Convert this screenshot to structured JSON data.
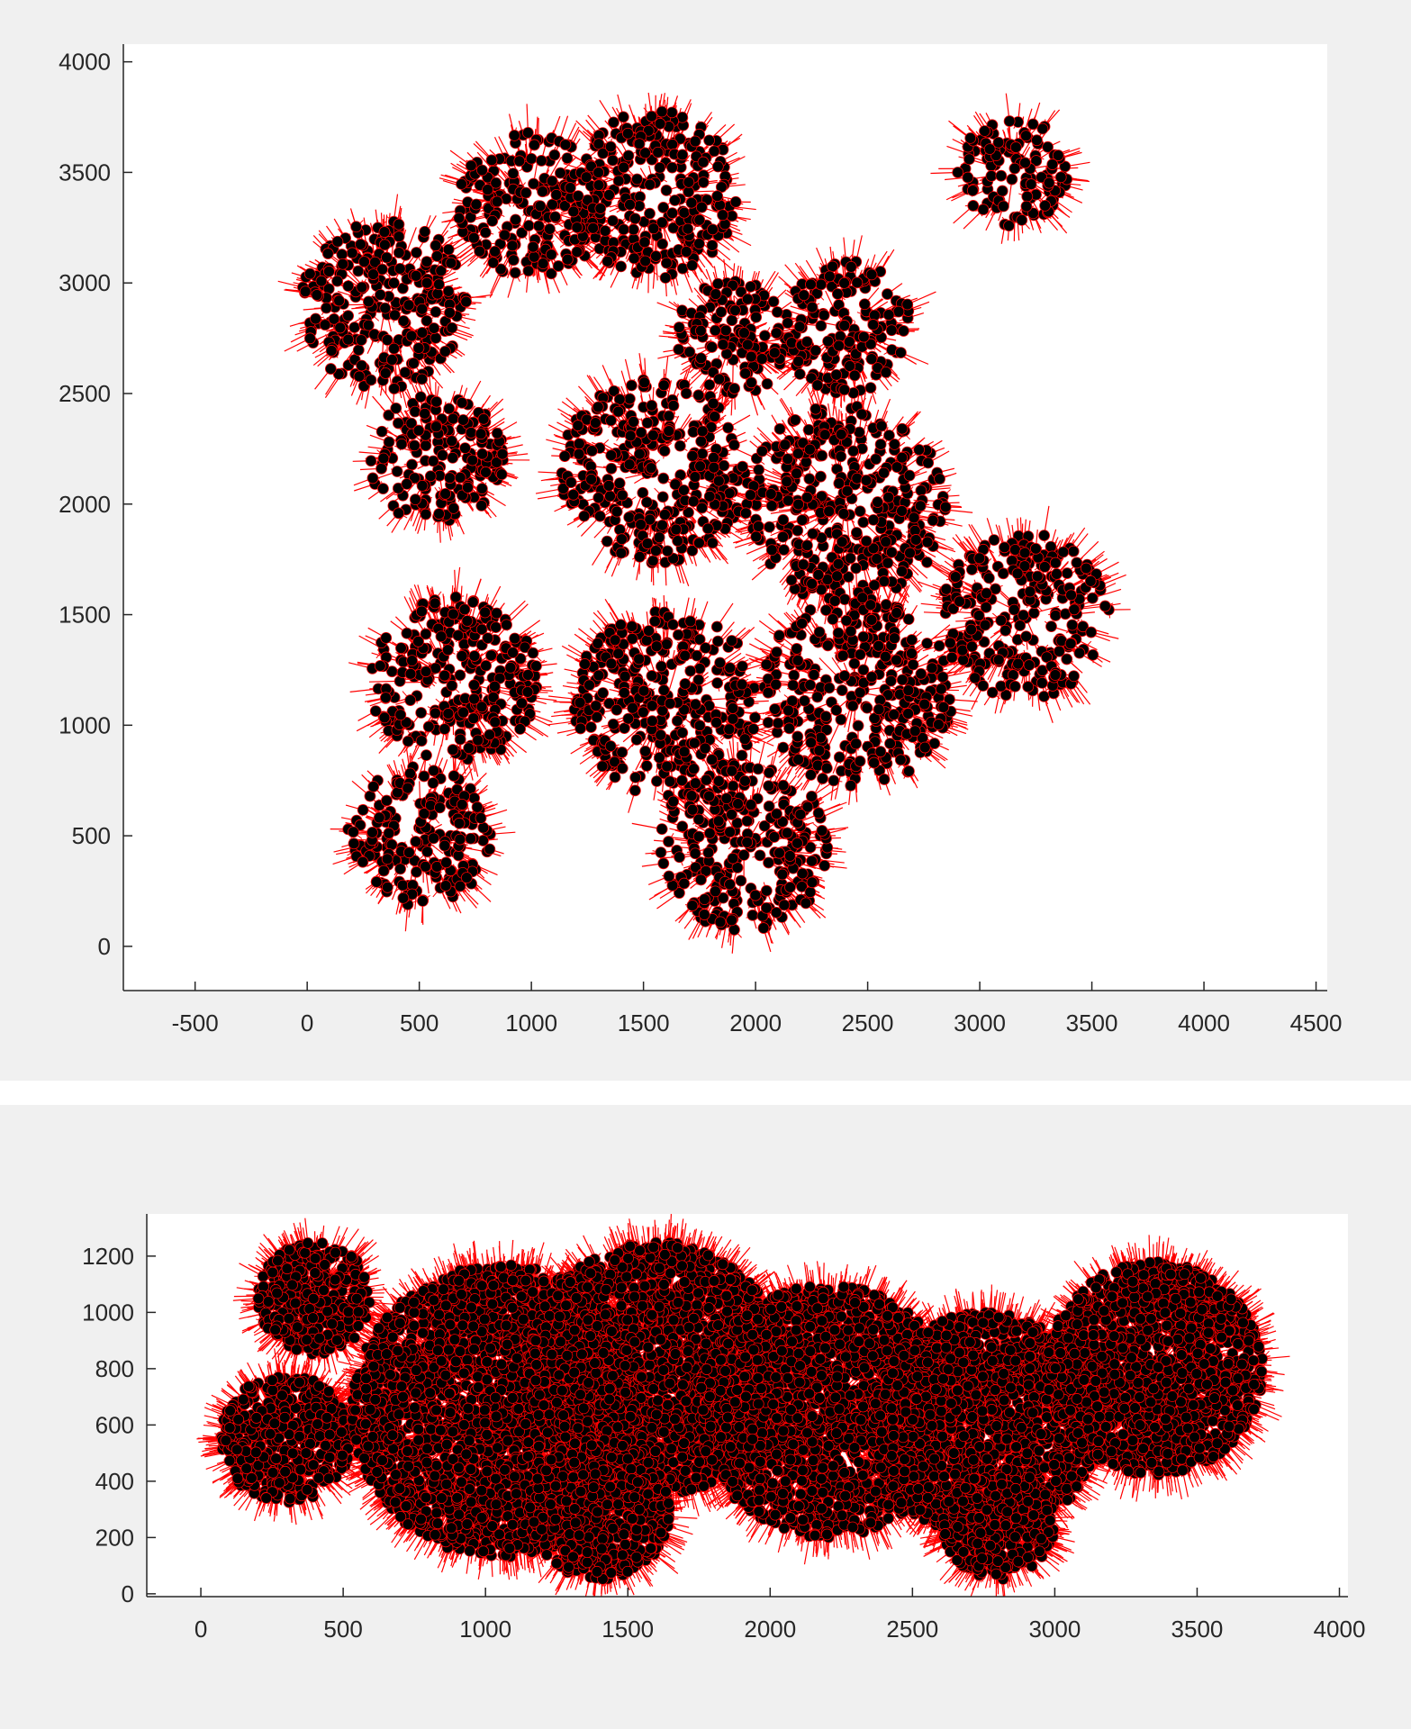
{
  "chart_data": [
    {
      "type": "scatter",
      "title": "",
      "xlabel": "",
      "ylabel": "",
      "xlim": [
        -820,
        4550
      ],
      "ylim": [
        -200,
        4080
      ],
      "xticks": [
        -500,
        0,
        500,
        1000,
        1500,
        2000,
        2500,
        3000,
        3500,
        4000,
        4500
      ],
      "yticks": [
        0,
        500,
        1000,
        1500,
        2000,
        2500,
        3000,
        3500,
        4000
      ],
      "grid": false,
      "colors": {
        "marker": "#000000",
        "glyph": "#ff0000",
        "plot_bg": "#ffffff",
        "figure_bg": "#f0f0f0"
      },
      "clusters": [
        {
          "x": 350,
          "y": 2900,
          "r": 380
        },
        {
          "x": 1000,
          "y": 3350,
          "r": 330
        },
        {
          "x": 1550,
          "y": 3400,
          "r": 380
        },
        {
          "x": 580,
          "y": 2200,
          "r": 300
        },
        {
          "x": 1550,
          "y": 2150,
          "r": 420
        },
        {
          "x": 650,
          "y": 1200,
          "r": 380
        },
        {
          "x": 1600,
          "y": 1100,
          "r": 420
        },
        {
          "x": 2400,
          "y": 2000,
          "r": 450
        },
        {
          "x": 2450,
          "y": 1150,
          "r": 430
        },
        {
          "x": 3200,
          "y": 1500,
          "r": 380
        },
        {
          "x": 500,
          "y": 500,
          "r": 320
        },
        {
          "x": 1950,
          "y": 450,
          "r": 380
        },
        {
          "x": 2400,
          "y": 2800,
          "r": 300
        },
        {
          "x": 3150,
          "y": 3500,
          "r": 250
        },
        {
          "x": 1900,
          "y": 2750,
          "r": 260
        }
      ]
    },
    {
      "type": "scatter",
      "title": "",
      "xlabel": "",
      "ylabel": "",
      "xlim": [
        -190,
        4030
      ],
      "ylim": [
        -10,
        1350
      ],
      "xticks": [
        0,
        500,
        1000,
        1500,
        2000,
        2500,
        3000,
        3500,
        4000
      ],
      "yticks": [
        0,
        200,
        400,
        600,
        800,
        1000,
        1200
      ],
      "grid": false,
      "colors": {
        "marker": "#000000",
        "glyph": "#ff0000",
        "plot_bg": "#ffffff",
        "figure_bg": "#f0f0f0"
      },
      "clusters": [
        {
          "x": 300,
          "y": 550,
          "r": 230
        },
        {
          "x": 400,
          "y": 1050,
          "r": 200
        },
        {
          "x": 1050,
          "y": 650,
          "r": 520
        },
        {
          "x": 1600,
          "y": 800,
          "r": 450
        },
        {
          "x": 2200,
          "y": 650,
          "r": 450
        },
        {
          "x": 2750,
          "y": 600,
          "r": 400
        },
        {
          "x": 3350,
          "y": 800,
          "r": 380
        },
        {
          "x": 1400,
          "y": 300,
          "r": 250
        },
        {
          "x": 2800,
          "y": 250,
          "r": 200
        }
      ]
    }
  ]
}
